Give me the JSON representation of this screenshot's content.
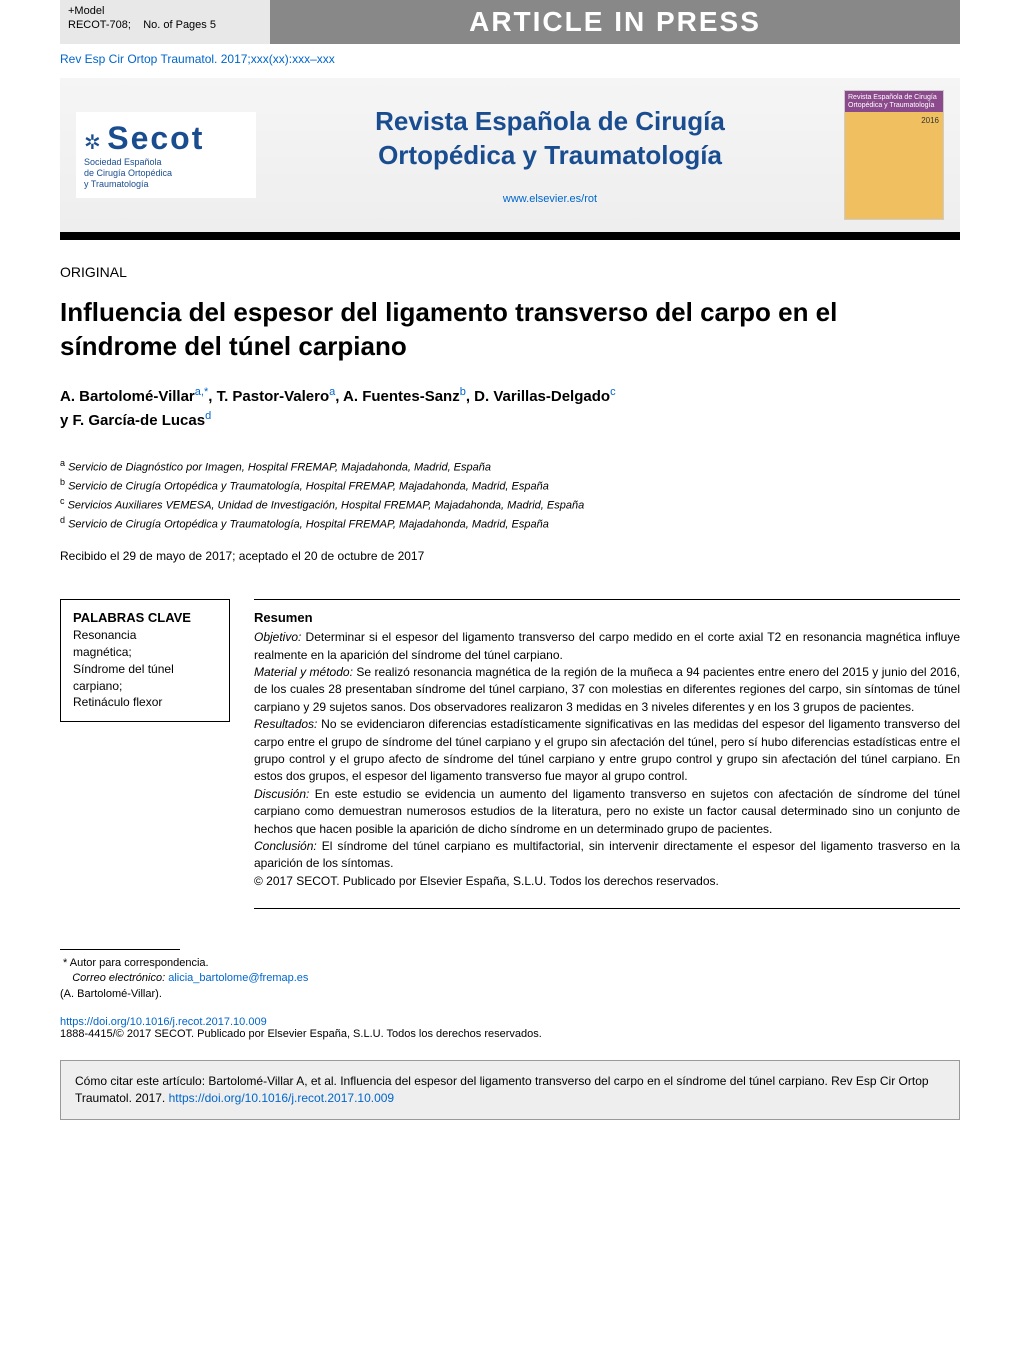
{
  "header": {
    "model_label": "+Model",
    "model_ref": "RECOT-708;",
    "pages_label": "No. of Pages 5",
    "banner": "ARTICLE IN PRESS",
    "citation_line": "Rev Esp Cir Ortop Traumatol. 2017;xxx(xx):xxx–xxx",
    "logo_text": "Secot",
    "logo_subtitle": "Sociedad Española\nde Cirugía Ortopédica\ny Traumatología",
    "journal_title_line1": "Revista Española de Cirugía",
    "journal_title_line2": "Ortopédica y Traumatología",
    "journal_url": "www.elsevier.es/rot",
    "cover_header": "Revista Española de Cirugía Ortopédica y Traumatología",
    "cover_year": "2016"
  },
  "article": {
    "section_type": "ORIGINAL",
    "title": "Influencia del espesor del ligamento transverso del carpo en el síndrome del túnel carpiano",
    "authors_html": "A. Bartolomé-Villar",
    "author_a_sup": "a,",
    "author_star": "*",
    "author2": ", T. Pastor-Valero",
    "author2_sup": "a",
    "author3": ", A. Fuentes-Sanz",
    "author3_sup": "b",
    "author4": ", D. Varillas-Delgado",
    "author4_sup": "c",
    "author5_prefix": "y ",
    "author5": "F. García-de Lucas",
    "author5_sup": "d",
    "affiliations": {
      "a": "Servicio de Diagnóstico por Imagen, Hospital FREMAP, Majadahonda, Madrid, España",
      "b": "Servicio de Cirugía Ortopédica y Traumatología, Hospital FREMAP, Majadahonda, Madrid, España",
      "c": "Servicios Auxiliares VEMESA, Unidad de Investigación, Hospital FREMAP, Majadahonda, Madrid, España",
      "d": "Servicio de Cirugía Ortopédica y Traumatología, Hospital FREMAP, Majadahonda, Madrid, España"
    },
    "dates": "Recibido el 29 de mayo de 2017; aceptado el 20 de octubre de 2017"
  },
  "keywords": {
    "heading": "PALABRAS CLAVE",
    "items": "Resonancia magnética;\nSíndrome del túnel carpiano;\nRetináculo flexor"
  },
  "abstract": {
    "heading": "Resumen",
    "objetivo_label": "Objetivo:",
    "objetivo": " Determinar si el espesor del ligamento transverso del carpo medido en el corte axial T2 en resonancia magnética influye realmente en la aparición del síndrome del túnel carpiano.",
    "material_label": "Material y método:",
    "material": " Se realizó resonancia magnética de la región de la muñeca a 94 pacientes entre enero del 2015 y junio del 2016, de los cuales 28 presentaban síndrome del túnel carpiano, 37 con molestias en diferentes regiones del carpo, sin síntomas de túnel carpiano y 29 sujetos sanos. Dos observadores realizaron 3 medidas en 3 niveles diferentes y en los 3 grupos de pacientes.",
    "resultados_label": "Resultados:",
    "resultados": " No se evidenciaron diferencias estadísticamente significativas en las medidas del espesor del ligamento transverso del carpo entre el grupo de síndrome del túnel carpiano y el grupo sin afectación del túnel, pero sí hubo diferencias estadísticas entre el grupo control y el grupo afecto de síndrome del túnel carpiano y entre grupo control y grupo sin afectación del túnel carpiano. En estos dos grupos, el espesor del ligamento transverso fue mayor al grupo control.",
    "discusion_label": "Discusión:",
    "discusion": " En este estudio se evidencia un aumento del ligamento transverso en sujetos con afectación de síndrome del túnel carpiano como demuestran numerosos estudios de la literatura, pero no existe un factor causal determinado sino un conjunto de hechos que hacen posible la aparición de dicho síndrome en un determinado grupo de pacientes.",
    "conclusion_label": "Conclusión:",
    "conclusion": " El síndrome del túnel carpiano es multifactorial, sin intervenir directamente el espesor del ligamento trasverso en la aparición de los síntomas.",
    "copyright": "© 2017 SECOT. Publicado por Elsevier España, S.L.U. Todos los derechos reservados."
  },
  "footer": {
    "corresponding_label": "Autor para correspondencia.",
    "email_label": "Correo electrónico:",
    "email": "alicia_bartolome@fremap.es",
    "corresponding_name": "(A. Bartolomé-Villar).",
    "doi": "https://doi.org/10.1016/j.recot.2017.10.009",
    "issn_copyright": "1888-4415/© 2017 SECOT. Publicado por Elsevier España, S.L.U. Todos los derechos reservados.",
    "citation_box_prefix": "Cómo citar este artículo: Bartolomé-Villar A, et al. Influencia del espesor del ligamento transverso del carpo en el síndrome del túnel carpiano. Rev Esp Cir Ortop Traumatol. 2017. ",
    "citation_box_doi": "https://doi.org/10.1016/j.recot.2017.10.009"
  },
  "colors": {
    "link": "#0066cc",
    "brand": "#1a4d8f",
    "banner_bg": "#888888",
    "box_bg": "#eeeeee"
  }
}
